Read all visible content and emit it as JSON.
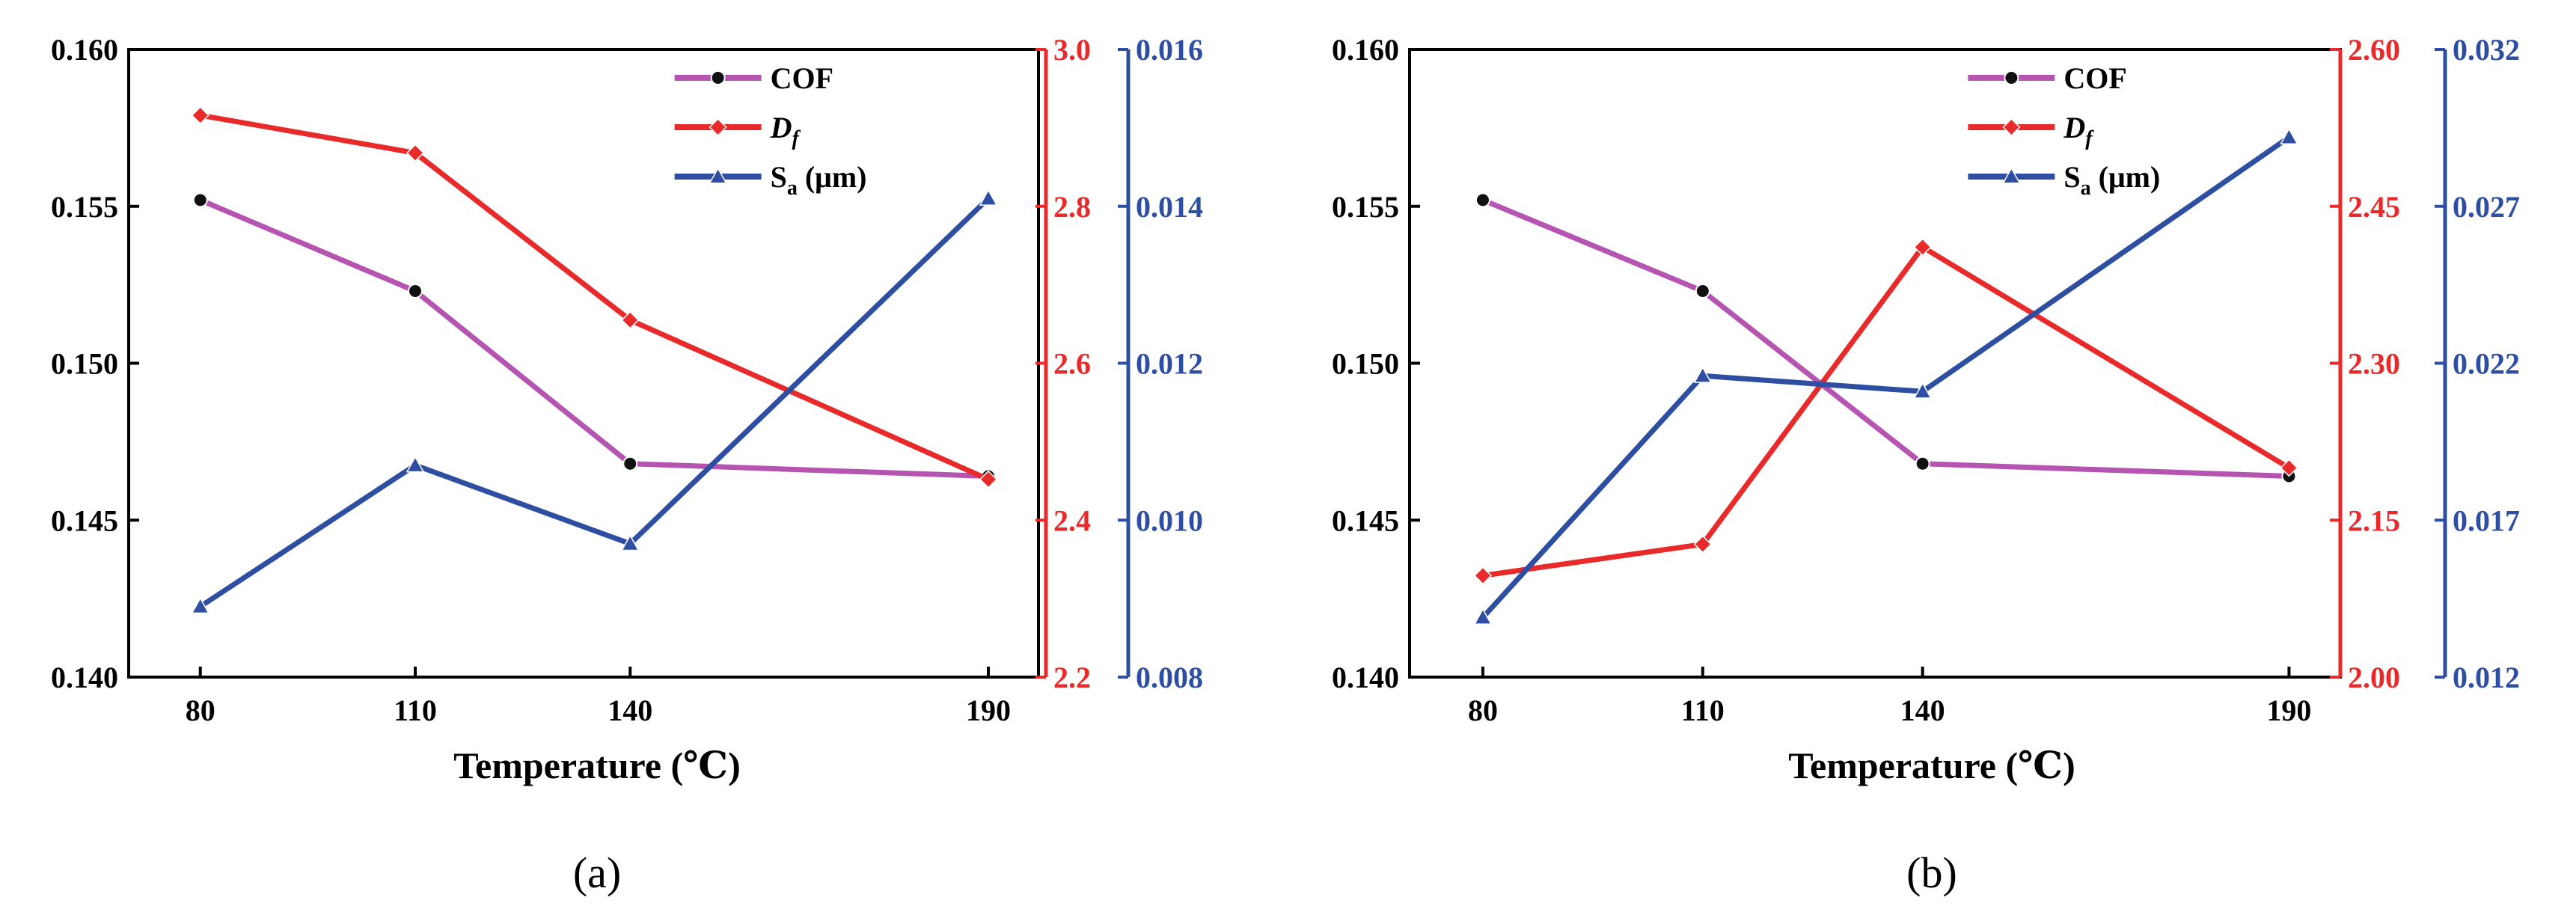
{
  "colors": {
    "cof": "#b554b1",
    "df": "#e82a2a",
    "sa": "#2e4fa1",
    "cof_marker": "#111111",
    "axis": "#000000"
  },
  "chart_data": [
    {
      "type": "line",
      "panel_label": "(a)",
      "xlabel": "Temperature (℃)",
      "categories": [
        "80",
        "110",
        "140",
        "190"
      ],
      "x": [
        80,
        110,
        140,
        190
      ],
      "xlim": [
        70,
        197
      ],
      "series": [
        {
          "key": "cof",
          "name": "COF",
          "name_sub": "",
          "axis": "left",
          "marker": "circle",
          "values": [
            0.1552,
            0.1523,
            0.1468,
            0.1464
          ]
        },
        {
          "key": "df",
          "name": "D",
          "name_sub": "f",
          "axis": "right1",
          "marker": "diamond",
          "values": [
            2.916,
            2.868,
            2.655,
            2.452
          ]
        },
        {
          "key": "sa",
          "name": "S",
          "name_sub": "a",
          "name_suffix": " (μm)",
          "axis": "right2",
          "marker": "triangle",
          "values": [
            0.0089,
            0.0107,
            0.0097,
            0.0141
          ]
        }
      ],
      "axes": {
        "left": {
          "ylim": [
            0.14,
            0.16
          ],
          "ticks": [
            "0.140",
            "0.145",
            "0.150",
            "0.155",
            "0.160"
          ],
          "tick_values": [
            0.14,
            0.145,
            0.15,
            0.155,
            0.16
          ]
        },
        "right1": {
          "ylim": [
            2.2,
            3.0
          ],
          "ticks": [
            "2.2",
            "2.4",
            "2.6",
            "2.8",
            "3.0"
          ],
          "tick_values": [
            2.2,
            2.4,
            2.6,
            2.8,
            3.0
          ]
        },
        "right2": {
          "ylim": [
            0.008,
            0.016
          ],
          "ticks": [
            "0.008",
            "0.010",
            "0.012",
            "0.014",
            "0.016"
          ],
          "tick_values": [
            0.008,
            0.01,
            0.012,
            0.014,
            0.016
          ]
        }
      },
      "legend_position": "top-right"
    },
    {
      "type": "line",
      "panel_label": "(b)",
      "xlabel": "Temperature (℃)",
      "categories": [
        "80",
        "110",
        "140",
        "190"
      ],
      "x": [
        80,
        110,
        140,
        190
      ],
      "xlim": [
        70,
        197
      ],
      "series": [
        {
          "key": "cof",
          "name": "COF",
          "name_sub": "",
          "axis": "left",
          "marker": "circle",
          "values": [
            0.1552,
            0.1523,
            0.1468,
            0.1464
          ]
        },
        {
          "key": "df",
          "name": "D",
          "name_sub": "f",
          "axis": "right1",
          "marker": "diamond",
          "values": [
            2.097,
            2.127,
            2.411,
            2.2
          ]
        },
        {
          "key": "sa",
          "name": "S",
          "name_sub": "a",
          "name_suffix": " (μm)",
          "axis": "right2",
          "marker": "triangle",
          "values": [
            0.0139,
            0.0216,
            0.0211,
            0.0292
          ]
        }
      ],
      "axes": {
        "left": {
          "ylim": [
            0.14,
            0.16
          ],
          "ticks": [
            "0.140",
            "0.145",
            "0.150",
            "0.155",
            "0.160"
          ],
          "tick_values": [
            0.14,
            0.145,
            0.15,
            0.155,
            0.16
          ]
        },
        "right1": {
          "ylim": [
            2.0,
            2.6
          ],
          "ticks": [
            "2.00",
            "2.15",
            "2.30",
            "2.45",
            "2.60"
          ],
          "tick_values": [
            2.0,
            2.15,
            2.3,
            2.45,
            2.6
          ]
        },
        "right2": {
          "ylim": [
            0.012,
            0.032
          ],
          "ticks": [
            "0.012",
            "0.017",
            "0.022",
            "0.027",
            "0.032"
          ],
          "tick_values": [
            0.012,
            0.017,
            0.022,
            0.027,
            0.032
          ]
        }
      },
      "legend_position": "top-right"
    }
  ]
}
